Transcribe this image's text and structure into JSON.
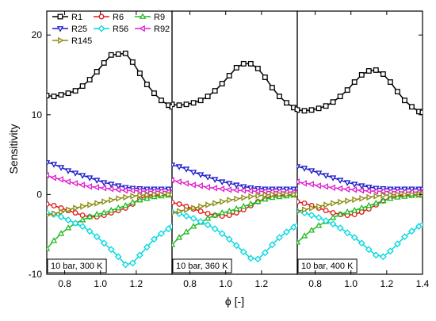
{
  "chart_data": {
    "type": "line",
    "ylabel": "Sensitivity",
    "xlabel": "ϕ [-]",
    "ylim": [
      -10,
      23
    ],
    "yticks": [
      -10,
      0,
      10,
      20
    ],
    "xlim": [
      0.7,
      1.4
    ],
    "xticks": [
      {
        "value": 0.8,
        "label": "0.8"
      },
      {
        "value": 1.0,
        "label": "1.0"
      },
      {
        "value": 1.2,
        "label": "1.2"
      }
    ],
    "xticks_last_panel": [
      {
        "value": 0.8,
        "label": "0.8"
      },
      {
        "value": 1.0,
        "label": "1.0"
      },
      {
        "value": 1.2,
        "label": "1.2"
      },
      {
        "value": 1.4,
        "label": "1.4"
      }
    ],
    "x": [
      0.7,
      0.74,
      0.78,
      0.82,
      0.86,
      0.9,
      0.94,
      0.98,
      1.02,
      1.06,
      1.1,
      1.14,
      1.18,
      1.22,
      1.26,
      1.3,
      1.34,
      1.38,
      1.4
    ],
    "legend": {
      "placement": "top-left",
      "columns": 3
    },
    "series_styles": [
      {
        "name": "R1",
        "color": "#000000",
        "marker": "square"
      },
      {
        "name": "R6",
        "color": "#e31a1c",
        "marker": "circle"
      },
      {
        "name": "R9",
        "color": "#22bb22",
        "marker": "triangle-up"
      },
      {
        "name": "R25",
        "color": "#1a1acc",
        "marker": "triangle-down"
      },
      {
        "name": "R56",
        "color": "#00d8e0",
        "marker": "diamond"
      },
      {
        "name": "R92",
        "color": "#e020d0",
        "marker": "triangle-left"
      },
      {
        "name": "R145",
        "color": "#8a8a10",
        "marker": "triangle-right"
      }
    ],
    "panels": [
      {
        "label": "10 bar, 300 K",
        "series": [
          {
            "name": "R1",
            "values": [
              12.4,
              12.3,
              12.5,
              12.7,
              13.0,
              13.6,
              14.4,
              15.4,
              16.5,
              17.5,
              17.6,
              17.7,
              16.6,
              15.2,
              13.8,
              12.7,
              11.8,
              11.2,
              11.0
            ]
          },
          {
            "name": "R6",
            "values": [
              -1.2,
              -1.4,
              -1.7,
              -2.0,
              -2.3,
              -2.6,
              -2.8,
              -2.8,
              -2.6,
              -2.3,
              -2.0,
              -1.7,
              -1.2,
              -0.5,
              -0.2,
              -0.1,
              -0.05,
              -0.03,
              -0.02
            ]
          },
          {
            "name": "R9",
            "values": [
              -6.8,
              -5.8,
              -4.9,
              -4.2,
              -3.6,
              -3.2,
              -2.8,
              -2.5,
              -2.3,
              -2.0,
              -1.7,
              -1.4,
              -1.0,
              -0.7,
              -0.5,
              -0.3,
              -0.2,
              -0.1,
              -0.08
            ]
          },
          {
            "name": "R25",
            "values": [
              4.0,
              3.8,
              3.4,
              3.0,
              2.7,
              2.4,
              2.1,
              1.8,
              1.5,
              1.3,
              1.1,
              0.9,
              0.8,
              0.75,
              0.7,
              0.7,
              0.7,
              0.7,
              0.7
            ]
          },
          {
            "name": "R56",
            "values": [
              -2.3,
              -2.5,
              -2.8,
              -3.2,
              -3.6,
              -4.0,
              -4.6,
              -5.3,
              -6.1,
              -6.9,
              -7.8,
              -8.8,
              -8.6,
              -7.6,
              -6.6,
              -5.6,
              -4.9,
              -4.3,
              -4.0
            ]
          },
          {
            "name": "R92",
            "values": [
              2.4,
              2.1,
              1.9,
              1.6,
              1.4,
              1.2,
              1.0,
              0.9,
              0.8,
              0.7,
              0.6,
              0.5,
              0.5,
              0.45,
              0.4,
              0.4,
              0.4,
              0.35,
              0.3
            ]
          },
          {
            "name": "R145",
            "values": [
              -2.6,
              -2.4,
              -2.2,
              -1.9,
              -1.7,
              -1.5,
              -1.3,
              -1.1,
              -0.9,
              -0.7,
              -0.5,
              -0.35,
              -0.2,
              -0.1,
              -0.05,
              0.0,
              0.0,
              0.0,
              0.0
            ]
          }
        ]
      },
      {
        "label": "10 bar, 360 K",
        "series": [
          {
            "name": "R1",
            "values": [
              11.3,
              11.2,
              11.3,
              11.5,
              11.8,
              12.3,
              13.0,
              13.9,
              14.9,
              15.9,
              16.4,
              16.4,
              15.8,
              14.7,
              13.4,
              12.3,
              11.5,
              10.9,
              10.7
            ]
          },
          {
            "name": "R6",
            "values": [
              -1.0,
              -1.2,
              -1.5,
              -1.8,
              -2.1,
              -2.4,
              -2.6,
              -2.7,
              -2.6,
              -2.3,
              -1.9,
              -1.4,
              -0.9,
              -0.5,
              -0.2,
              -0.1,
              -0.05,
              -0.03,
              -0.02
            ]
          },
          {
            "name": "R9",
            "values": [
              -6.3,
              -5.4,
              -4.7,
              -4.0,
              -3.5,
              -3.0,
              -2.6,
              -2.3,
              -2.1,
              -1.8,
              -1.5,
              -1.2,
              -0.9,
              -0.6,
              -0.4,
              -0.3,
              -0.2,
              -0.1,
              -0.08
            ]
          },
          {
            "name": "R25",
            "values": [
              3.7,
              3.5,
              3.2,
              2.8,
              2.5,
              2.2,
              1.9,
              1.6,
              1.4,
              1.2,
              1.0,
              0.85,
              0.75,
              0.7,
              0.7,
              0.7,
              0.7,
              0.7,
              0.7
            ]
          },
          {
            "name": "R56",
            "values": [
              -2.2,
              -2.4,
              -2.7,
              -3.0,
              -3.4,
              -3.8,
              -4.3,
              -4.9,
              -5.6,
              -6.4,
              -7.2,
              -8.0,
              -8.1,
              -7.3,
              -6.3,
              -5.4,
              -4.7,
              -4.1,
              -3.9
            ]
          },
          {
            "name": "R92",
            "values": [
              1.8,
              1.6,
              1.4,
              1.2,
              1.1,
              0.9,
              0.8,
              0.7,
              0.6,
              0.55,
              0.5,
              0.45,
              0.4,
              0.4,
              0.35,
              0.35,
              0.3,
              0.3,
              0.3
            ]
          },
          {
            "name": "R145",
            "values": [
              -2.3,
              -2.1,
              -1.9,
              -1.7,
              -1.5,
              -1.3,
              -1.1,
              -0.9,
              -0.7,
              -0.55,
              -0.4,
              -0.25,
              -0.15,
              -0.05,
              0.0,
              0.0,
              0.0,
              0.0,
              0.0
            ]
          }
        ]
      },
      {
        "label": "10 bar, 400 K",
        "series": [
          {
            "name": "R1",
            "values": [
              10.6,
              10.5,
              10.6,
              10.8,
              11.1,
              11.6,
              12.3,
              13.1,
              14.1,
              15.0,
              15.5,
              15.6,
              15.1,
              14.1,
              12.9,
              11.8,
              11.0,
              10.4,
              10.3
            ]
          },
          {
            "name": "R6",
            "values": [
              -0.9,
              -1.1,
              -1.4,
              -1.7,
              -2.0,
              -2.3,
              -2.5,
              -2.6,
              -2.5,
              -2.2,
              -1.8,
              -1.3,
              -0.8,
              -0.4,
              -0.2,
              -0.1,
              -0.05,
              -0.03,
              -0.02
            ]
          },
          {
            "name": "R9",
            "values": [
              -6.0,
              -5.2,
              -4.5,
              -3.9,
              -3.4,
              -2.9,
              -2.5,
              -2.2,
              -2.0,
              -1.7,
              -1.4,
              -1.1,
              -0.8,
              -0.5,
              -0.35,
              -0.25,
              -0.15,
              -0.1,
              -0.08
            ]
          },
          {
            "name": "R25",
            "values": [
              3.5,
              3.3,
              3.0,
              2.7,
              2.4,
              2.1,
              1.8,
              1.5,
              1.3,
              1.1,
              0.95,
              0.8,
              0.75,
              0.7,
              0.7,
              0.7,
              0.7,
              0.7,
              0.7
            ]
          },
          {
            "name": "R56",
            "values": [
              -2.1,
              -2.3,
              -2.6,
              -2.9,
              -3.3,
              -3.7,
              -4.2,
              -4.8,
              -5.4,
              -6.1,
              -6.9,
              -7.6,
              -7.8,
              -7.1,
              -6.2,
              -5.3,
              -4.6,
              -4.0,
              -3.8
            ]
          },
          {
            "name": "R92",
            "values": [
              1.6,
              1.4,
              1.3,
              1.1,
              1.0,
              0.85,
              0.75,
              0.65,
              0.6,
              0.5,
              0.45,
              0.4,
              0.4,
              0.35,
              0.35,
              0.3,
              0.3,
              0.3,
              0.3
            ]
          },
          {
            "name": "R145",
            "values": [
              -2.1,
              -1.9,
              -1.7,
              -1.5,
              -1.3,
              -1.1,
              -0.95,
              -0.8,
              -0.65,
              -0.5,
              -0.35,
              -0.2,
              -0.1,
              -0.05,
              0.0,
              0.0,
              0.0,
              0.0,
              0.0
            ]
          }
        ]
      }
    ]
  }
}
